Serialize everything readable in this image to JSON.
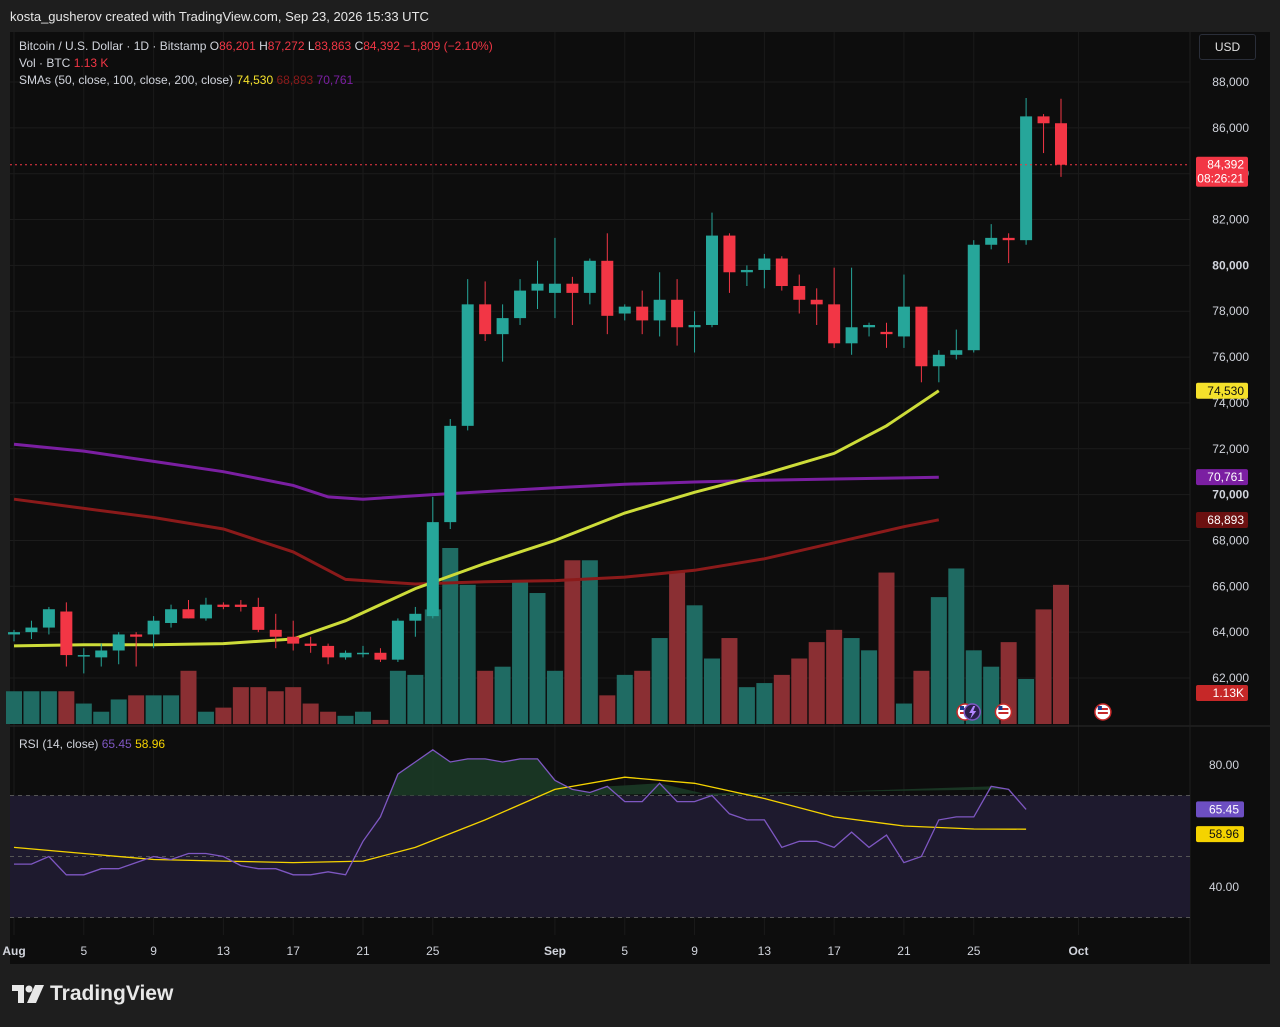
{
  "header": {
    "credit": "kosta_gusherov created with TradingView.com, Sep 23, 2026 15:33 UTC"
  },
  "legend": {
    "symbol": "Bitcoin / U.S. Dollar · 1D · Bitstamp",
    "o_label": "O",
    "o": "86,201",
    "h_label": "H",
    "h": "87,272",
    "l_label": "L",
    "l": "83,863",
    "c_label": "C",
    "c": "84,392",
    "change": "−1,809 (−2.10%)",
    "vol_label": "Vol · BTC",
    "vol": "1.13 K",
    "sma_label": "SMAs (50, close, 100, close, 200, close)",
    "sma50": "74,530",
    "sma100": "68,893",
    "sma200": "70,761"
  },
  "rsi_legend": {
    "label": "RSI (14, close)",
    "rsi": "65.45",
    "ma": "58.96"
  },
  "currency": "USD",
  "colors": {
    "up": "#26a69a",
    "down": "#f23645",
    "sma50": "#cddc39",
    "sma100": "#8b1a1a",
    "sma200": "#7b1fa2",
    "rsi": "#7e57c2",
    "rsi_ma": "#f5d300"
  },
  "footer": {
    "brand": "TradingView"
  },
  "chart_data": {
    "type": "candlestick",
    "price_axis": {
      "ticks": [
        "62,000",
        "64,000",
        "66,000",
        "68,000",
        "70,000",
        "72,000",
        "74,000",
        "76,000",
        "78,000",
        "80,000",
        "82,000",
        "84,000",
        "86,000",
        "88,000"
      ],
      "range": [
        61000,
        89000
      ]
    },
    "time_axis": {
      "ticks": [
        {
          "label": "Aug",
          "day": 1
        },
        {
          "label": "5",
          "day": 5
        },
        {
          "label": "9",
          "day": 9
        },
        {
          "label": "13",
          "day": 13
        },
        {
          "label": "17",
          "day": 17
        },
        {
          "label": "21",
          "day": 21
        },
        {
          "label": "25",
          "day": 25
        },
        {
          "label": "Sep",
          "day": 32
        },
        {
          "label": "5",
          "day": 36
        },
        {
          "label": "9",
          "day": 40
        },
        {
          "label": "13",
          "day": 44
        },
        {
          "label": "17",
          "day": 48
        },
        {
          "label": "21",
          "day": 52
        },
        {
          "label": "25",
          "day": 56
        },
        {
          "label": "Oct",
          "day": 62
        }
      ]
    },
    "candles": [
      {
        "o": 63900,
        "h": 64100,
        "l": 63600,
        "c": 64000
      },
      {
        "o": 64000,
        "h": 64500,
        "l": 63700,
        "c": 64200
      },
      {
        "o": 64200,
        "h": 65100,
        "l": 63900,
        "c": 65000
      },
      {
        "o": 64900,
        "h": 65300,
        "l": 62500,
        "c": 63000
      },
      {
        "o": 63000,
        "h": 63300,
        "l": 62200,
        "c": 63000
      },
      {
        "o": 62900,
        "h": 63500,
        "l": 62500,
        "c": 63200
      },
      {
        "o": 63200,
        "h": 64000,
        "l": 62600,
        "c": 63900
      },
      {
        "o": 63900,
        "h": 64000,
        "l": 62500,
        "c": 63800
      },
      {
        "o": 63900,
        "h": 64700,
        "l": 63300,
        "c": 64500
      },
      {
        "o": 64400,
        "h": 65200,
        "l": 64200,
        "c": 65000
      },
      {
        "o": 65000,
        "h": 65400,
        "l": 64600,
        "c": 64600
      },
      {
        "o": 64600,
        "h": 65500,
        "l": 64500,
        "c": 65200
      },
      {
        "o": 65200,
        "h": 65300,
        "l": 65000,
        "c": 65100
      },
      {
        "o": 65200,
        "h": 65400,
        "l": 64900,
        "c": 65100
      },
      {
        "o": 65100,
        "h": 65500,
        "l": 64000,
        "c": 64100
      },
      {
        "o": 64100,
        "h": 64800,
        "l": 63300,
        "c": 63800
      },
      {
        "o": 63800,
        "h": 64500,
        "l": 63200,
        "c": 63500
      },
      {
        "o": 63500,
        "h": 63800,
        "l": 63100,
        "c": 63400
      },
      {
        "o": 63400,
        "h": 63500,
        "l": 62600,
        "c": 62900
      },
      {
        "o": 62900,
        "h": 63200,
        "l": 62800,
        "c": 63100
      },
      {
        "o": 63100,
        "h": 63400,
        "l": 62900,
        "c": 63100
      },
      {
        "o": 63100,
        "h": 63300,
        "l": 62700,
        "c": 62800
      },
      {
        "o": 62800,
        "h": 64600,
        "l": 62700,
        "c": 64500
      },
      {
        "o": 64500,
        "h": 65100,
        "l": 63800,
        "c": 64800
      },
      {
        "o": 64700,
        "h": 69900,
        "l": 64600,
        "c": 68800
      },
      {
        "o": 68800,
        "h": 73300,
        "l": 68500,
        "c": 73000
      },
      {
        "o": 73000,
        "h": 79400,
        "l": 72800,
        "c": 78300
      },
      {
        "o": 78300,
        "h": 79300,
        "l": 76700,
        "c": 77000
      },
      {
        "o": 77000,
        "h": 78300,
        "l": 75800,
        "c": 77700
      },
      {
        "o": 77700,
        "h": 79400,
        "l": 77400,
        "c": 78900
      },
      {
        "o": 78900,
        "h": 80200,
        "l": 78100,
        "c": 79200
      },
      {
        "o": 78800,
        "h": 81200,
        "l": 77700,
        "c": 79200
      },
      {
        "o": 79200,
        "h": 79500,
        "l": 77400,
        "c": 78800
      },
      {
        "o": 78800,
        "h": 80300,
        "l": 78300,
        "c": 80200
      },
      {
        "o": 80200,
        "h": 81400,
        "l": 77000,
        "c": 77800
      },
      {
        "o": 77900,
        "h": 78300,
        "l": 77600,
        "c": 78200
      },
      {
        "o": 78200,
        "h": 78900,
        "l": 77000,
        "c": 77600
      },
      {
        "o": 77600,
        "h": 79700,
        "l": 76900,
        "c": 78500
      },
      {
        "o": 78500,
        "h": 79400,
        "l": 76500,
        "c": 77300
      },
      {
        "o": 77300,
        "h": 78000,
        "l": 76200,
        "c": 77400
      },
      {
        "o": 77400,
        "h": 82300,
        "l": 77300,
        "c": 81300
      },
      {
        "o": 81300,
        "h": 81400,
        "l": 78800,
        "c": 79700
      },
      {
        "o": 79700,
        "h": 80000,
        "l": 79100,
        "c": 79800
      },
      {
        "o": 79800,
        "h": 80500,
        "l": 79000,
        "c": 80300
      },
      {
        "o": 80300,
        "h": 80400,
        "l": 78900,
        "c": 79100
      },
      {
        "o": 79100,
        "h": 79600,
        "l": 77900,
        "c": 78500
      },
      {
        "o": 78500,
        "h": 79000,
        "l": 77400,
        "c": 78300
      },
      {
        "o": 78300,
        "h": 79900,
        "l": 76400,
        "c": 76600
      },
      {
        "o": 76600,
        "h": 79900,
        "l": 76100,
        "c": 77300
      },
      {
        "o": 77300,
        "h": 77500,
        "l": 76900,
        "c": 77400
      },
      {
        "o": 77100,
        "h": 77500,
        "l": 76400,
        "c": 77000
      },
      {
        "o": 76900,
        "h": 79600,
        "l": 76400,
        "c": 78200
      },
      {
        "o": 78200,
        "h": 78200,
        "l": 74900,
        "c": 75600
      },
      {
        "o": 75600,
        "h": 76300,
        "l": 74900,
        "c": 76100
      },
      {
        "o": 76100,
        "h": 77200,
        "l": 75900,
        "c": 76300
      },
      {
        "o": 76300,
        "h": 81100,
        "l": 76200,
        "c": 80900
      },
      {
        "o": 80900,
        "h": 81800,
        "l": 80700,
        "c": 81200
      },
      {
        "o": 81200,
        "h": 81400,
        "l": 80100,
        "c": 81100
      },
      {
        "o": 81100,
        "h": 87300,
        "l": 80900,
        "c": 86500
      },
      {
        "o": 86500,
        "h": 86600,
        "l": 84900,
        "c": 86200
      },
      {
        "o": 86201,
        "h": 87272,
        "l": 83863,
        "c": 84392
      }
    ],
    "volume": [
      8,
      8,
      8,
      8,
      5,
      3,
      6,
      7,
      7,
      7,
      13,
      3,
      4,
      9,
      9,
      8,
      9,
      5,
      3,
      2,
      3,
      1,
      13,
      12,
      28,
      43,
      34,
      13,
      14,
      35,
      32,
      13,
      40,
      40,
      7,
      12,
      13,
      21,
      37,
      29,
      16,
      21,
      9,
      10,
      12,
      16,
      20,
      23,
      21,
      18,
      37,
      5,
      13,
      31,
      38,
      18,
      14,
      20,
      11,
      28,
      34
    ]
  }
}
